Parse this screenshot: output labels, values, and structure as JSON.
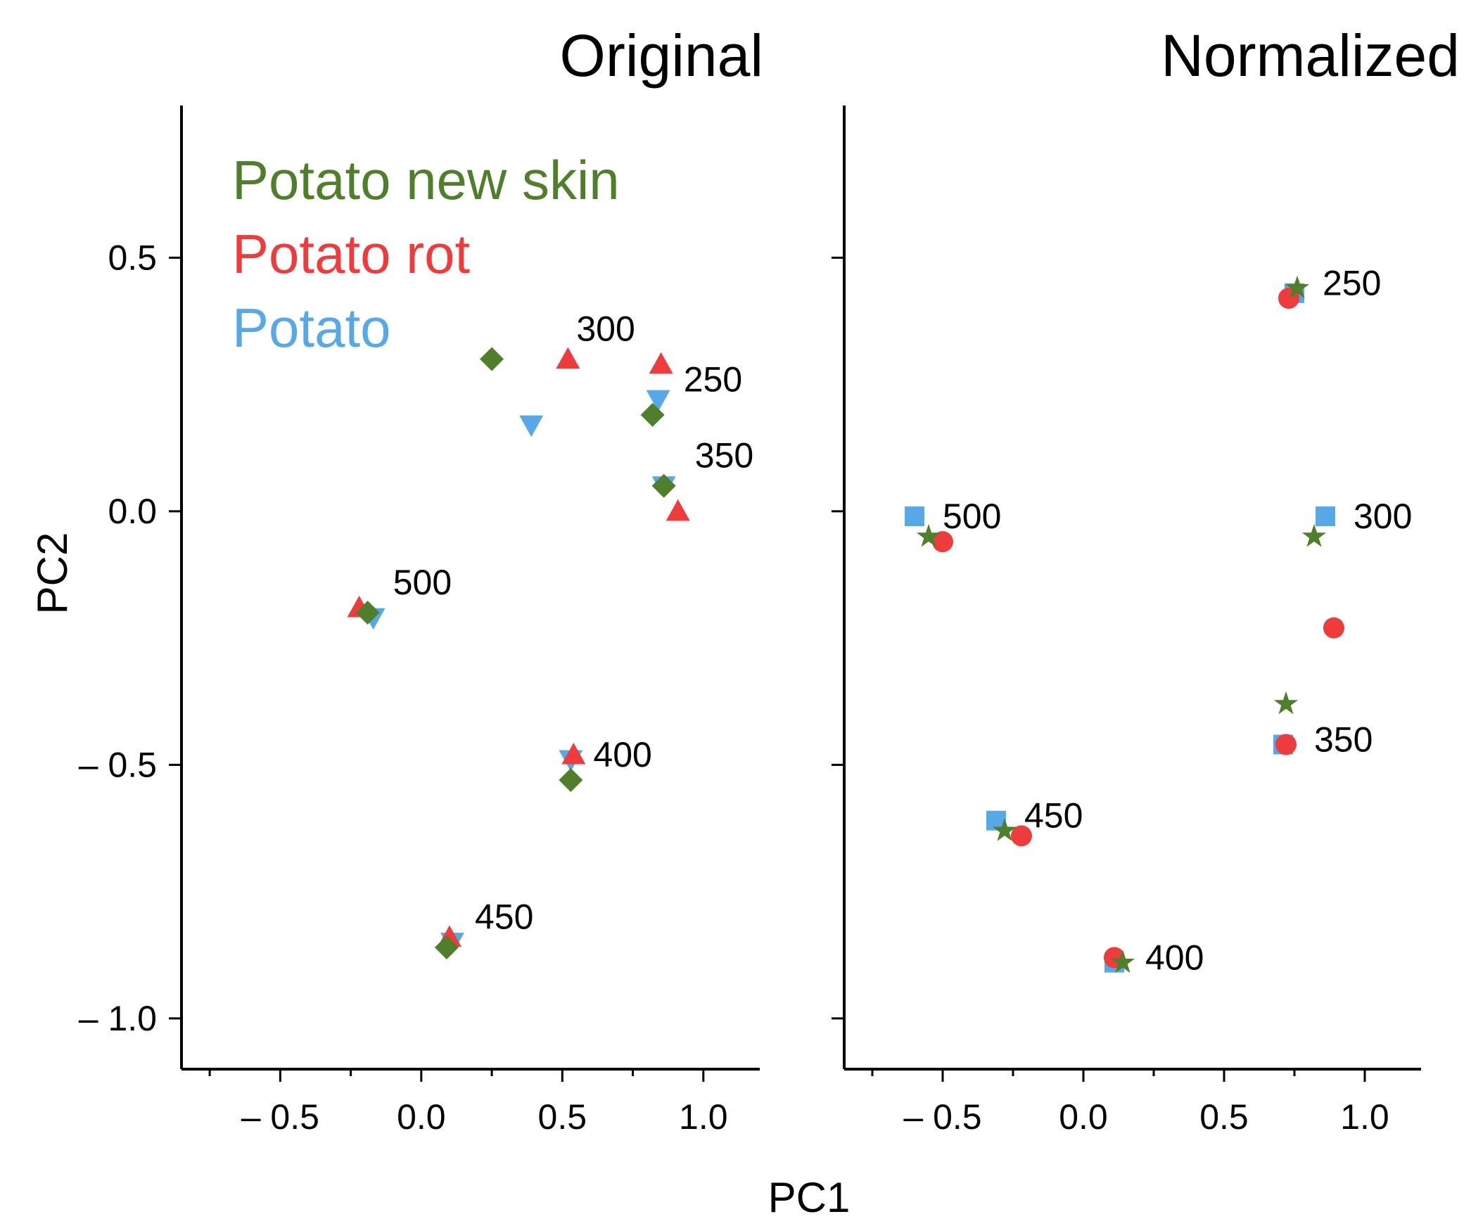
{
  "chart_data": [
    {
      "type": "scatter",
      "title": "Original",
      "xlabel": "PC1",
      "ylabel": "PC2",
      "xlim": [
        -0.85,
        1.2
      ],
      "ylim": [
        -1.1,
        0.8
      ],
      "xticks": [
        -0.5,
        0.0,
        0.5,
        1.0
      ],
      "xtick_labels": [
        "– 0.5",
        "0.0",
        "0.5",
        "1.0"
      ],
      "yticks": [
        0.5,
        0.0,
        -0.5,
        -1.0
      ],
      "ytick_labels": [
        "0.5",
        "0.0",
        "– 0.5",
        "– 1.0"
      ],
      "legend": {
        "position": "top-left",
        "entries": [
          {
            "label": "Potato new skin",
            "color": "#4f7f2a"
          },
          {
            "label": "Potato rot",
            "color": "#ee3b3b"
          },
          {
            "label": "Potato",
            "color": "#56a9e6"
          }
        ]
      },
      "series": [
        {
          "name": "Potato",
          "marker": "triangle-down",
          "color": "#56a9e6",
          "points": [
            {
              "x": 0.84,
              "y": 0.22
            },
            {
              "x": 0.39,
              "y": 0.17
            },
            {
              "x": 0.86,
              "y": 0.05
            },
            {
              "x": -0.17,
              "y": -0.21
            },
            {
              "x": 0.53,
              "y": -0.49
            },
            {
              "x": 0.11,
              "y": -0.85
            }
          ]
        },
        {
          "name": "Potato rot",
          "marker": "triangle-up",
          "color": "#ee3b3b",
          "points": [
            {
              "x": 0.85,
              "y": 0.29
            },
            {
              "x": 0.52,
              "y": 0.3
            },
            {
              "x": 0.91,
              "y": 0.0
            },
            {
              "x": -0.22,
              "y": -0.19
            },
            {
              "x": 0.54,
              "y": -0.48
            },
            {
              "x": 0.1,
              "y": -0.84
            }
          ]
        },
        {
          "name": "Potato new skin",
          "marker": "diamond",
          "color": "#4f7f2a",
          "points": [
            {
              "x": 0.25,
              "y": 0.3
            },
            {
              "x": 0.82,
              "y": 0.19
            },
            {
              "x": 0.86,
              "y": 0.05
            },
            {
              "x": -0.19,
              "y": -0.2
            },
            {
              "x": 0.53,
              "y": -0.53
            },
            {
              "x": 0.09,
              "y": -0.86
            }
          ]
        }
      ],
      "annotations": [
        {
          "text": "300",
          "x": 0.55,
          "y": 0.36
        },
        {
          "text": "250",
          "x": 0.93,
          "y": 0.26
        },
        {
          "text": "350",
          "x": 0.97,
          "y": 0.11
        },
        {
          "text": "500",
          "x": -0.1,
          "y": -0.14
        },
        {
          "text": "400",
          "x": 0.61,
          "y": -0.48
        },
        {
          "text": "450",
          "x": 0.19,
          "y": -0.8
        }
      ]
    },
    {
      "type": "scatter",
      "title": "Normalized",
      "xlabel": "PC1",
      "ylabel": "PC2",
      "xlim": [
        -0.85,
        1.2
      ],
      "ylim": [
        -1.1,
        0.8
      ],
      "xticks": [
        -0.5,
        0.0,
        0.5,
        1.0
      ],
      "xtick_labels": [
        "– 0.5",
        "0.0",
        "0.5",
        "1.0"
      ],
      "yticks": [
        0.5,
        0.0,
        -0.5,
        -1.0
      ],
      "ytick_labels": [],
      "series": [
        {
          "name": "Potato",
          "marker": "square",
          "color": "#56a9e6",
          "points": [
            {
              "x": 0.75,
              "y": 0.43
            },
            {
              "x": 0.86,
              "y": -0.01
            },
            {
              "x": -0.6,
              "y": -0.01
            },
            {
              "x": 0.71,
              "y": -0.46
            },
            {
              "x": -0.31,
              "y": -0.61
            },
            {
              "x": 0.11,
              "y": -0.89
            }
          ]
        },
        {
          "name": "Potato rot",
          "marker": "circle",
          "color": "#ee3b3b",
          "points": [
            {
              "x": 0.73,
              "y": 0.42
            },
            {
              "x": 0.89,
              "y": -0.23
            },
            {
              "x": -0.5,
              "y": -0.06
            },
            {
              "x": 0.72,
              "y": -0.46
            },
            {
              "x": -0.22,
              "y": -0.64
            },
            {
              "x": 0.11,
              "y": -0.88
            }
          ]
        },
        {
          "name": "Potato new skin",
          "marker": "star",
          "color": "#4f7f2a",
          "points": [
            {
              "x": 0.76,
              "y": 0.44
            },
            {
              "x": 0.82,
              "y": -0.05
            },
            {
              "x": -0.55,
              "y": -0.05
            },
            {
              "x": 0.72,
              "y": -0.38
            },
            {
              "x": -0.28,
              "y": -0.63
            },
            {
              "x": 0.14,
              "y": -0.89
            }
          ]
        }
      ],
      "annotations": [
        {
          "text": "250",
          "x": 0.85,
          "y": 0.45
        },
        {
          "text": "500",
          "x": -0.5,
          "y": -0.01
        },
        {
          "text": "300",
          "x": 0.96,
          "y": -0.01
        },
        {
          "text": "350",
          "x": 0.82,
          "y": -0.45
        },
        {
          "text": "450",
          "x": -0.21,
          "y": -0.6
        },
        {
          "text": "400",
          "x": 0.22,
          "y": -0.88
        }
      ]
    }
  ]
}
